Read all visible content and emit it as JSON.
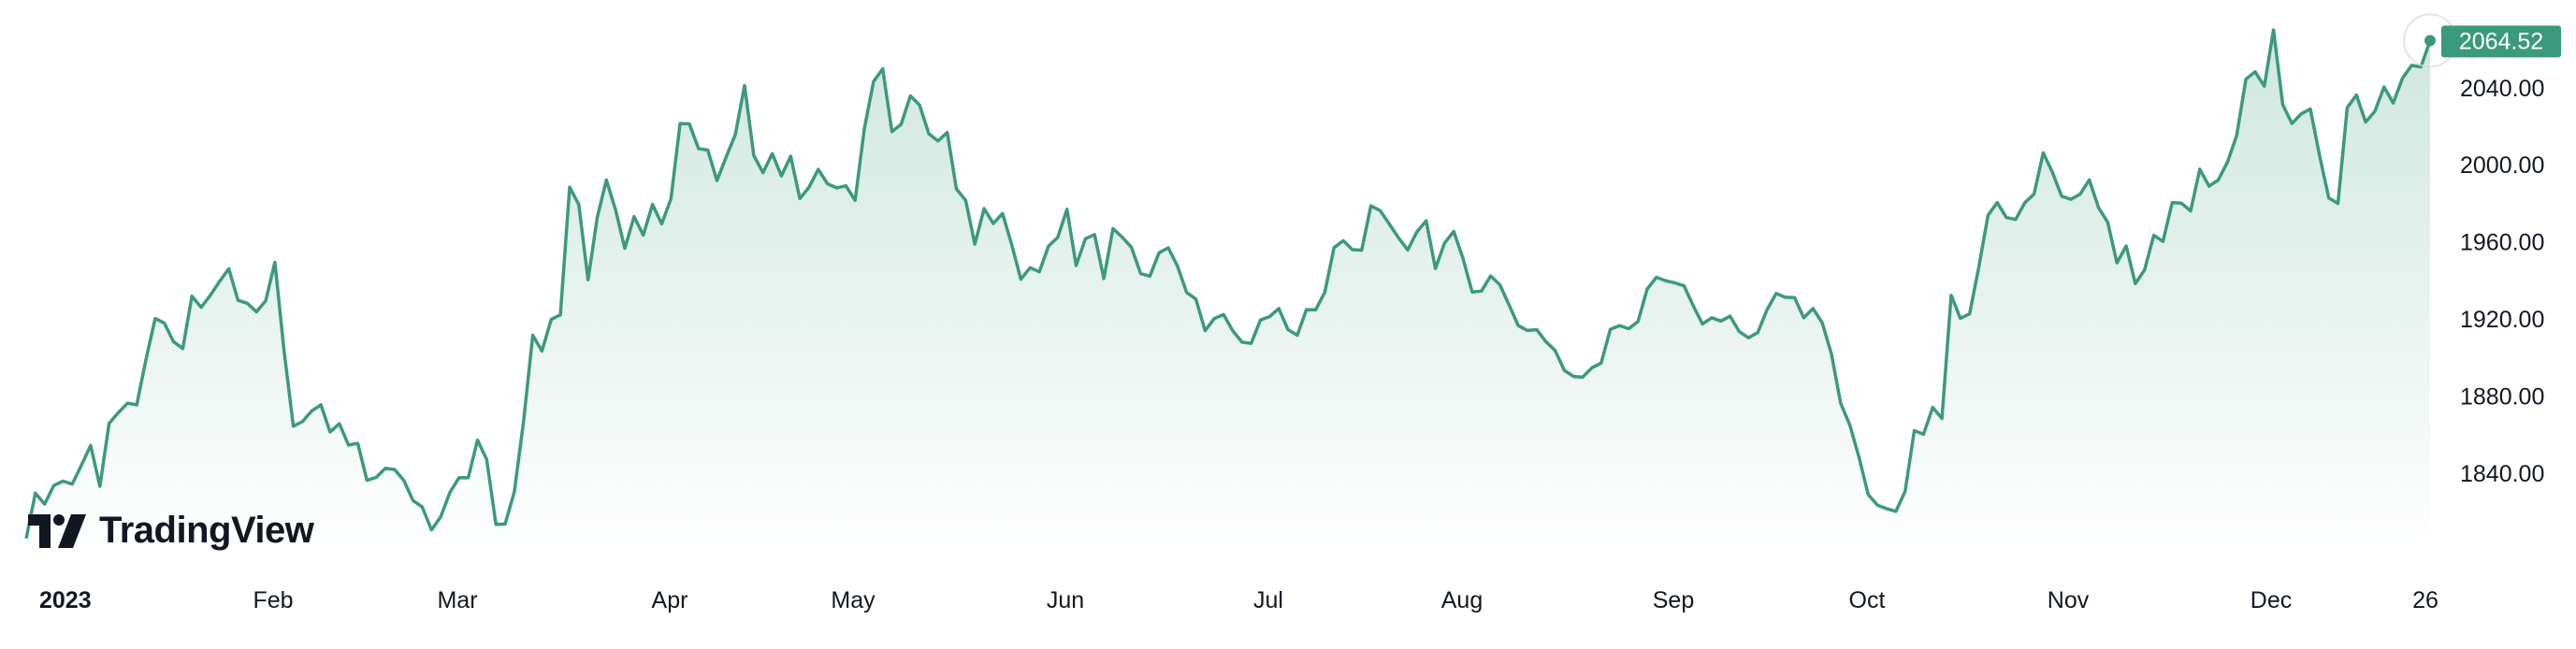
{
  "brand": {
    "name": "TradingView",
    "logo_icon": "tradingview-logo-icon"
  },
  "colors": {
    "line": "#3c9a7c",
    "fill_top": "#cfe6de",
    "fill_bottom": "#ffffff",
    "label_bg": "#3c9a7c"
  },
  "chart_data": {
    "type": "area",
    "title": "",
    "xlabel": "",
    "ylabel": "",
    "x_tick_labels": [
      "2023",
      "Feb",
      "Mar",
      "Apr",
      "May",
      "Jun",
      "Jul",
      "Aug",
      "Sep",
      "Oct",
      "Nov",
      "Dec",
      "26"
    ],
    "y_tick_labels": [
      "2040.00",
      "2000.00",
      "1960.00",
      "1920.00",
      "1880.00",
      "1840.00"
    ],
    "y_ticks": [
      2040,
      2000,
      1960,
      1920,
      1880,
      1840
    ],
    "ylim": [
      1800,
      2080
    ],
    "grid": false,
    "last_value_label": "2064.52",
    "series": [
      {
        "values": [
          1806.0,
          1829.5,
          1823.9,
          1833.5,
          1835.8,
          1834.2,
          1844.1,
          1854.3,
          1833.1,
          1865.7,
          1871.3,
          1876.2,
          1875.4,
          1898.8,
          1920.2,
          1917.8,
          1908.2,
          1904.6,
          1931.8,
          1926.0,
          1932.3,
          1939.5,
          1946.0,
          1929.6,
          1928.1,
          1923.7,
          1929.3,
          1949.4,
          1903.4,
          1864.3,
          1866.7,
          1872.2,
          1875.4,
          1861.3,
          1865.6,
          1854.5,
          1855.4,
          1836.2,
          1837.7,
          1842.5,
          1841.8,
          1836.2,
          1825.7,
          1822.4,
          1810.5,
          1817.2,
          1829.9,
          1837.6,
          1837.5,
          1857.1,
          1847.1,
          1813.3,
          1813.5,
          1830.3,
          1866.6,
          1911.5,
          1903.3,
          1919.7,
          1922.1,
          1988.4,
          1979.3,
          1940.3,
          1972.6,
          1992.1,
          1976.5,
          1956.6,
          1973.1,
          1963.5,
          1979.4,
          1969.3,
          1982.3,
          2021.4,
          2021.2,
          2008.4,
          2007.6,
          1991.8,
          2004.1,
          2015.8,
          2041.1,
          2004.8,
          1995.9,
          2005.8,
          1994.2,
          2004.4,
          1982.5,
          1988.4,
          1997.6,
          1990.1,
          1988.0,
          1989.1,
          1981.5,
          2018.9,
          2043.2,
          2049.8,
          2017.2,
          2021.0,
          2035.8,
          2031.0,
          2016.1,
          2012.4,
          2016.8,
          1987.5,
          1981.5,
          1958.8,
          1977.3,
          1969.5,
          1974.7,
          1958.6,
          1940.6,
          1946.6,
          1944.4,
          1957.8,
          1962.3,
          1976.9,
          1947.7,
          1961.6,
          1963.8,
          1940.9,
          1966.9,
          1962.4,
          1957.2,
          1943.5,
          1942.2,
          1954.3,
          1956.9,
          1947.5,
          1933.7,
          1930.3,
          1913.9,
          1920.2,
          1922.3,
          1913.9,
          1907.9,
          1907.3,
          1919.4,
          1921.2,
          1925.4,
          1914.4,
          1911.5,
          1924.8,
          1924.7,
          1933.9,
          1957.0,
          1960.6,
          1955.9,
          1955.7,
          1978.7,
          1976.2,
          1969.2,
          1962.1,
          1955.8,
          1965.3,
          1970.9,
          1946.1,
          1959.4,
          1965.4,
          1951.4,
          1934.0,
          1934.4,
          1942.3,
          1937.7,
          1927.3,
          1916.5,
          1914.0,
          1914.4,
          1908.2,
          1903.6,
          1893.3,
          1890.1,
          1889.8,
          1894.6,
          1897.1,
          1914.6,
          1916.5,
          1914.9,
          1918.7,
          1935.5,
          1941.6,
          1939.8,
          1938.7,
          1937.2,
          1926.8,
          1917.4,
          1920.6,
          1918.9,
          1921.4,
          1913.4,
          1910.2,
          1912.9,
          1924.6,
          1933.2,
          1931.2,
          1931.0,
          1920.6,
          1925.4,
          1918.0,
          1901.8,
          1876.3,
          1864.8,
          1848.1,
          1828.8,
          1823.3,
          1821.5,
          1820.1,
          1830.4,
          1862.0,
          1860.1,
          1874.1,
          1868.3,
          1932.3,
          1920.3,
          1922.6,
          1946.8,
          1973.8,
          1980.4,
          1972.6,
          1971.6,
          1980.3,
          1984.8,
          2006.2,
          1996.0,
          1983.7,
          1982.1,
          1984.7,
          1992.2,
          1977.8,
          1970.1,
          1949.1,
          1957.8,
          1938.3,
          1945.5,
          1963.4,
          1960.2,
          1980.4,
          1980.1,
          1976.0,
          1997.7,
          1988.9,
          1992.1,
          2001.4,
          2015.1,
          2044.4,
          2048.3,
          2040.8,
          2070.0,
          2031.2,
          2021.4,
          2026.4,
          2029.0,
          2004.9,
          1982.8,
          1979.9,
          2029.6,
          2036.2,
          2022.2,
          2027.7,
          2040.4,
          2032.1,
          2044.9,
          2051.6,
          2050.8,
          2064.5
        ]
      }
    ]
  }
}
